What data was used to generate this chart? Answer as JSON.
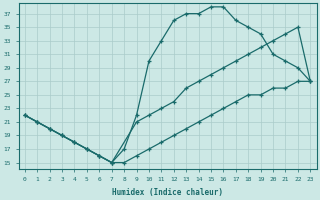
{
  "xlabel": "Humidex (Indice chaleur)",
  "bg_color": "#cce8e5",
  "line_color": "#1a6b6b",
  "grid_color": "#aaccca",
  "xlim": [
    -0.5,
    23.5
  ],
  "ylim": [
    14,
    38.5
  ],
  "yticks": [
    15,
    17,
    19,
    21,
    23,
    25,
    27,
    29,
    31,
    33,
    35,
    37
  ],
  "xticks": [
    0,
    1,
    2,
    3,
    4,
    5,
    6,
    7,
    8,
    9,
    10,
    11,
    12,
    13,
    14,
    15,
    16,
    17,
    18,
    19,
    20,
    21,
    22,
    23
  ],
  "line_top_x": [
    0,
    1,
    2,
    3,
    4,
    5,
    6,
    7,
    8,
    9,
    10,
    11,
    12,
    13,
    14,
    15,
    16,
    17,
    18,
    19,
    20,
    21,
    22,
    23
  ],
  "line_top_y": [
    22,
    21,
    20,
    19,
    18,
    17,
    16,
    15,
    17,
    22,
    30,
    33,
    36,
    37,
    37,
    38,
    38,
    36,
    35,
    34,
    31,
    30,
    29,
    27
  ],
  "line_mid_x": [
    0,
    1,
    2,
    3,
    4,
    5,
    6,
    7,
    9,
    10,
    11,
    12,
    13,
    14,
    15,
    16,
    17,
    18,
    19,
    20,
    21,
    22,
    23
  ],
  "line_mid_y": [
    22,
    21,
    20,
    19,
    18,
    17,
    16,
    15,
    21,
    22,
    23,
    24,
    26,
    27,
    28,
    29,
    30,
    31,
    32,
    33,
    34,
    35,
    27
  ],
  "line_bot_x": [
    0,
    1,
    2,
    3,
    4,
    5,
    6,
    7,
    8,
    9,
    10,
    11,
    12,
    13,
    14,
    15,
    16,
    17,
    18,
    19,
    20,
    21,
    22,
    23
  ],
  "line_bot_y": [
    22,
    21,
    20,
    19,
    18,
    17,
    16,
    15,
    15,
    16,
    17,
    18,
    19,
    20,
    21,
    22,
    23,
    24,
    25,
    25,
    26,
    26,
    27,
    27
  ]
}
